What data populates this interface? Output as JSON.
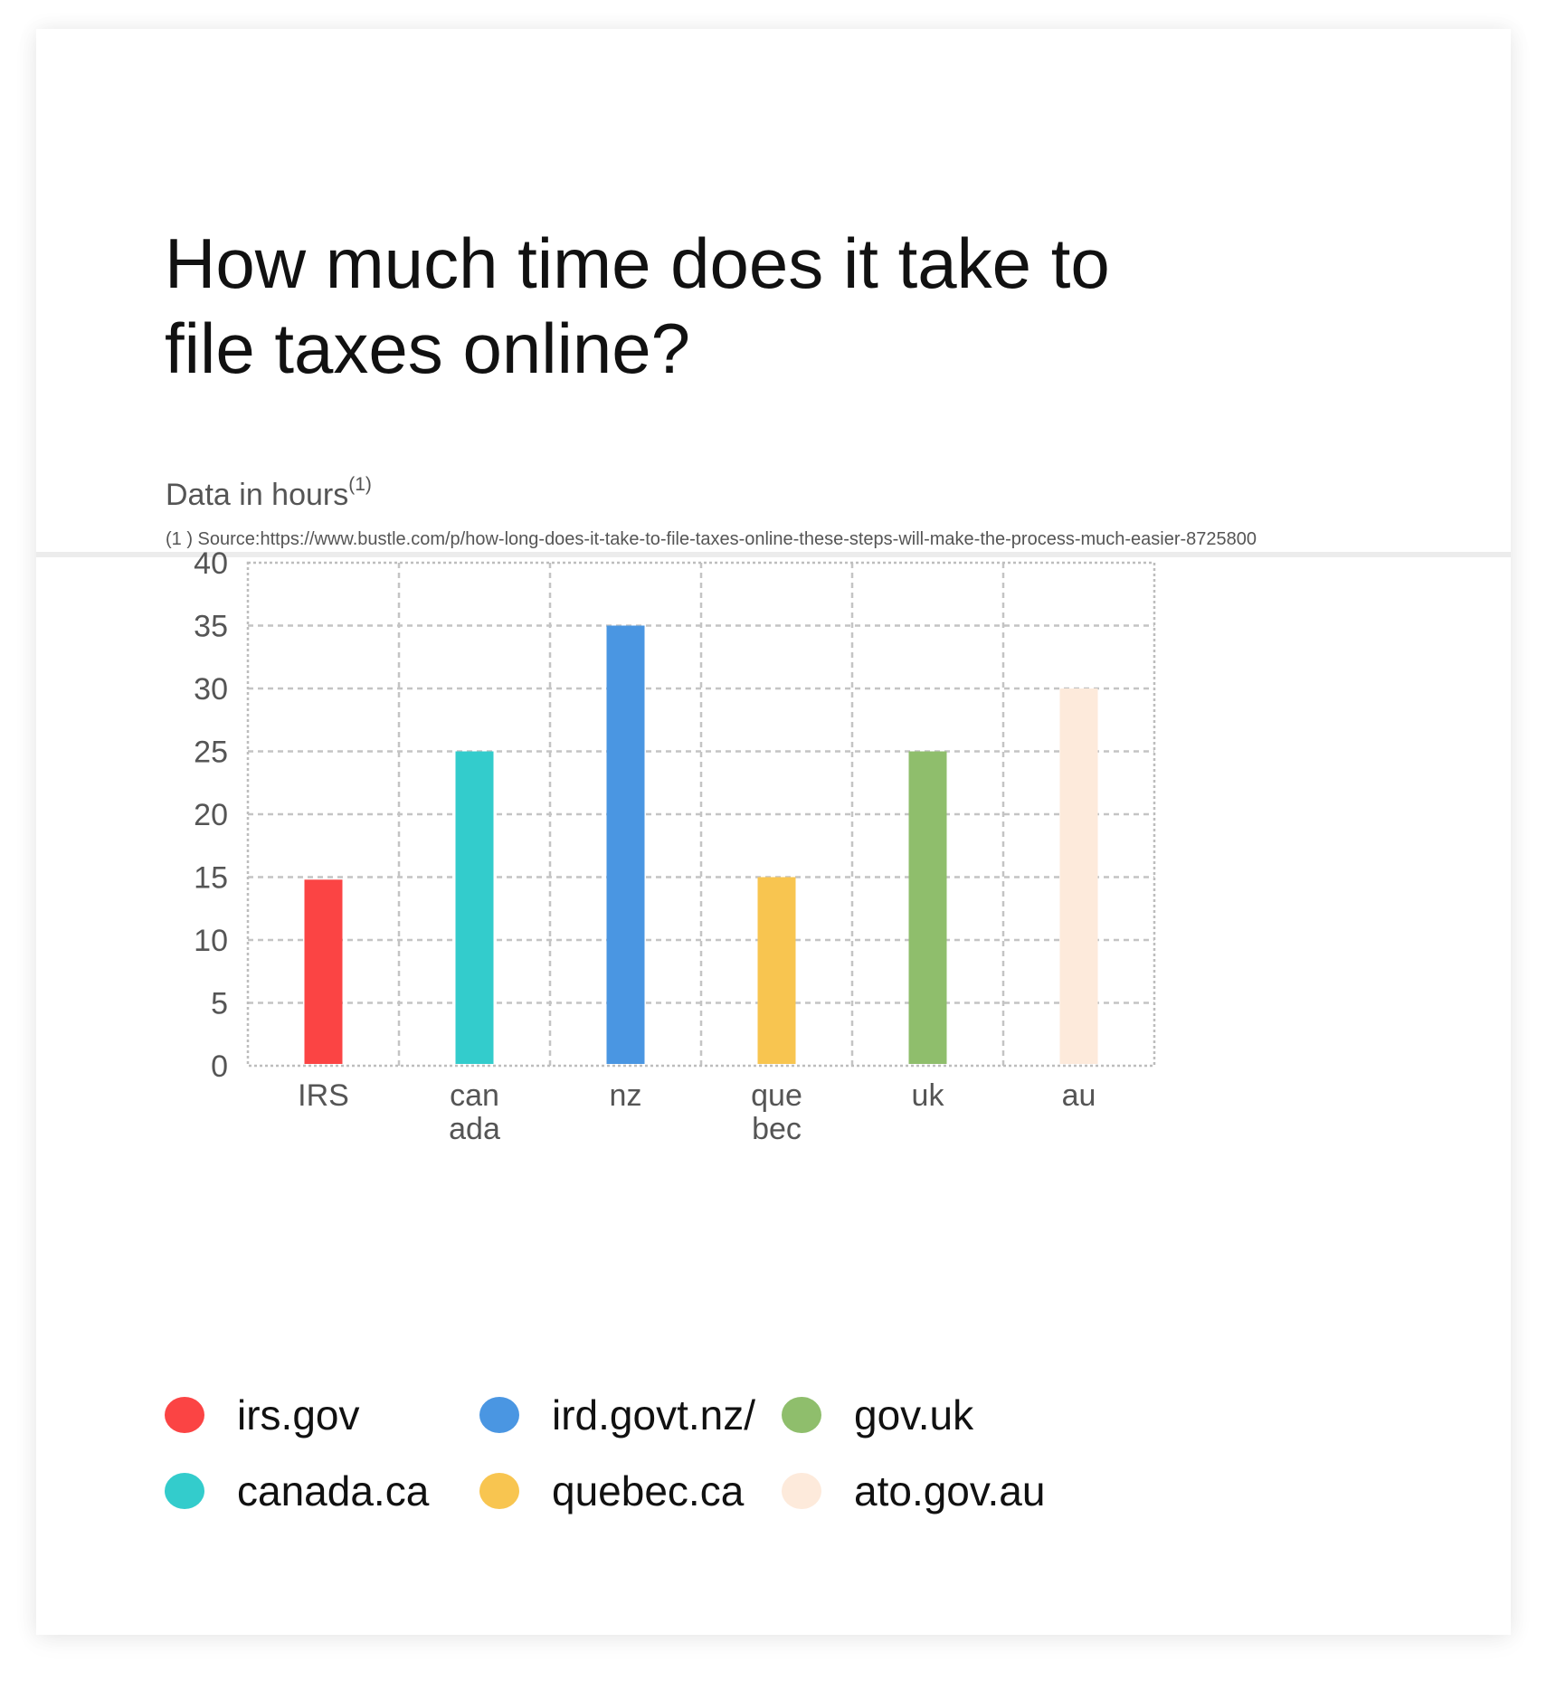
{
  "title": "How much time does it take to file taxes online?",
  "subtitle": {
    "text": "Data in hours",
    "footnote_marker": "(1)"
  },
  "source": "(1 ) Source:https://www.bustle.com/p/how-long-does-it-take-to-file-taxes-online-these-steps-will-make-the-process-much-easier-8725800",
  "chart_data": {
    "type": "bar",
    "title": "How much time does it take to file taxes online?",
    "ylabel": "",
    "xlabel": "",
    "ylim": [
      0,
      40
    ],
    "yticks": [
      0,
      5,
      10,
      15,
      20,
      25,
      30,
      35,
      40
    ],
    "grid": true,
    "legend_position": "bottom",
    "categories": [
      [
        "IRS"
      ],
      [
        "can",
        "ada"
      ],
      [
        "nz"
      ],
      [
        "que",
        "bec"
      ],
      [
        "uk"
      ],
      [
        "au"
      ]
    ],
    "values": [
      14.8,
      25,
      35,
      15,
      25,
      30
    ],
    "colors": [
      "#fb4444",
      "#33cccc",
      "#4a96e2",
      "#f8c550",
      "#8fbe6c",
      "#fdeadb"
    ]
  },
  "legend": {
    "items": [
      {
        "label": "irs.gov",
        "color": "#fb4444"
      },
      {
        "label": "canada.ca",
        "color": "#33cccc"
      },
      {
        "label": "ird.govt.nz/",
        "color": "#4a96e2"
      },
      {
        "label": "quebec.ca",
        "color": "#f8c550"
      },
      {
        "label": "gov.uk",
        "color": "#8fbe6c"
      },
      {
        "label": "ato.gov.au",
        "color": "#fdeadb"
      }
    ]
  }
}
